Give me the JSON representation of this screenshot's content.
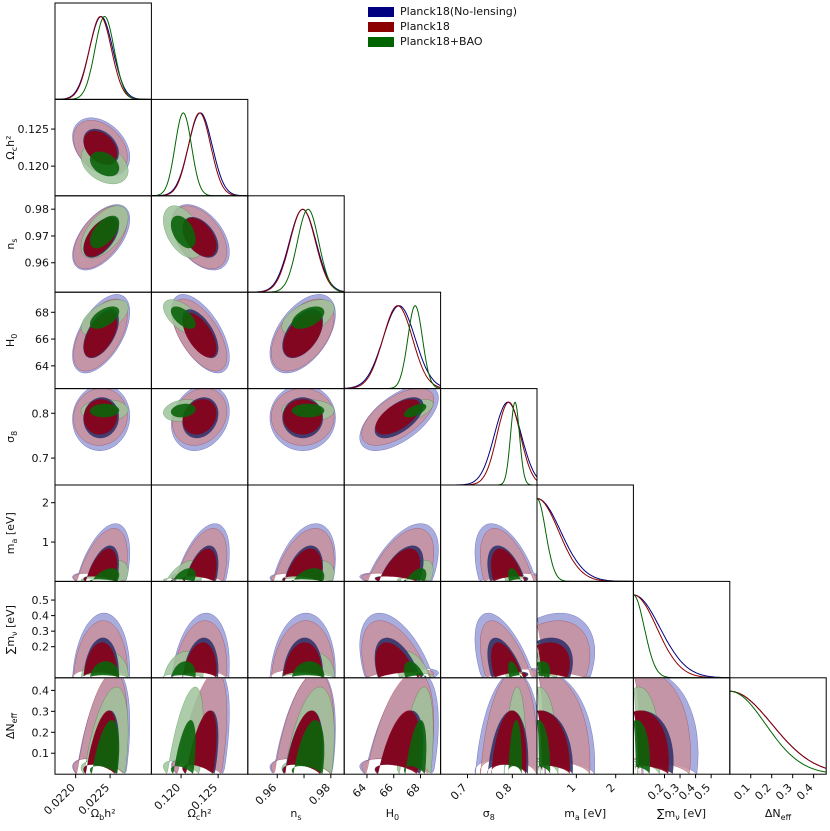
{
  "chart_data": {
    "type": "triangle-corner-plot",
    "legend": {
      "placement": "top-center",
      "entries": [
        {
          "label": "Planck18(No-lensing)",
          "color": "#000080"
        },
        {
          "label": "Planck18",
          "color": "#8b0000"
        },
        {
          "label": "Planck18+BAO",
          "color": "#006400"
        }
      ]
    },
    "parameters": [
      {
        "key": "omegabh2",
        "tex_main": "Ω",
        "tex_sub": "b",
        "tex_rest": "h²",
        "range": [
          0.0217,
          0.0231
        ],
        "ticks": [
          0.022,
          0.0225
        ],
        "tick_labels": [
          "0.0220",
          "0.0225"
        ]
      },
      {
        "key": "omegach2",
        "tex_main": "Ω",
        "tex_sub": "c",
        "tex_rest": "h²",
        "range": [
          0.116,
          0.129
        ],
        "ticks": [
          0.12,
          0.125
        ],
        "tick_labels": [
          "0.120",
          "0.125"
        ]
      },
      {
        "key": "ns",
        "tex_main": "n",
        "tex_sub": "s",
        "tex_rest": "",
        "range": [
          0.949,
          0.985
        ],
        "ticks": [
          0.96,
          0.97,
          0.98
        ],
        "tick_labels": [
          "0.96",
          "0.97",
          "0.98"
        ],
        "bottom_tick_labels": [
          "0.96",
          "",
          "0.98"
        ]
      },
      {
        "key": "H0",
        "tex_main": "H",
        "tex_sub": "0",
        "tex_rest": "",
        "range": [
          62.3,
          69.5
        ],
        "ticks": [
          64,
          66,
          68
        ],
        "tick_labels": [
          "64",
          "66",
          "68"
        ]
      },
      {
        "key": "sigma8",
        "tex_main": "σ",
        "tex_sub": "8",
        "tex_rest": "",
        "range": [
          0.64,
          0.855
        ],
        "ticks": [
          0.7,
          0.8
        ],
        "tick_labels": [
          "0.7",
          "0.8"
        ]
      },
      {
        "key": "ma",
        "tex_main": "m",
        "tex_sub": "a",
        "tex_rest": " [eV]",
        "range": [
          0.0,
          2.45
        ],
        "ticks": [
          1,
          2
        ],
        "tick_labels": [
          "1",
          "2"
        ]
      },
      {
        "key": "mnu",
        "tex_main": "∑m",
        "tex_sub": "ν",
        "tex_rest": " [eV]",
        "range": [
          0.0,
          0.62
        ],
        "ticks": [
          0.2,
          0.3,
          0.4,
          0.5
        ],
        "tick_labels": [
          "0.2",
          "0.3",
          "0.4",
          "0.5"
        ],
        "bottom_tick_labels": [
          "0.2",
          "0.3",
          "0.4",
          "0.5"
        ]
      },
      {
        "key": "dneff",
        "tex_main": "ΔN",
        "tex_sub": "eff",
        "tex_rest": "",
        "range": [
          0.0,
          0.46
        ],
        "ticks": [
          0.1,
          0.2,
          0.3,
          0.4
        ],
        "tick_labels": [
          "0.1",
          "0.2",
          "0.3",
          "0.4"
        ]
      }
    ],
    "left_tick_overrides": {
      "omegach2": [
        "0.120",
        "0.125"
      ],
      "ns": [
        "0.96",
        "0.97",
        "0.98"
      ],
      "H0": [
        "64",
        "66",
        "68"
      ],
      "sigma8": [
        "0.7",
        "0.8"
      ],
      "ma": [
        "1",
        "2"
      ],
      "mnu": [
        "0.2",
        "0.3",
        "0.4",
        "0.5"
      ],
      "dneff": [
        "0.1",
        "0.2",
        "0.3",
        "0.4"
      ]
    },
    "fills": {
      "nolensing_outer": "#9a9fd8",
      "nolensing_inner": "#33336b",
      "planck_outer": "#c9909d",
      "planck_inner": "#8b0018",
      "bao_outer": "#9fc39a",
      "bao_inner": "#0a640a"
    },
    "gaussian_params": {
      "nolensing": {
        "mean": [
          0.02237,
          0.1226,
          0.9695,
          66.4,
          0.79,
          0.0,
          0.0,
          0.0
        ],
        "sd": [
          0.00017,
          0.0016,
          0.005,
          1.2,
          0.03,
          0.6,
          0.17,
          0.2
        ],
        "limit": [
          false,
          false,
          false,
          false,
          false,
          true,
          true,
          true
        ]
      },
      "planck": {
        "mean": [
          0.02236,
          0.1225,
          0.9695,
          66.3,
          0.792,
          0.0,
          0.0,
          0.0
        ],
        "sd": [
          0.00016,
          0.0015,
          0.0048,
          1.1,
          0.026,
          0.55,
          0.15,
          0.2
        ],
        "limit": [
          false,
          false,
          false,
          false,
          false,
          true,
          true,
          true
        ]
      },
      "bao": {
        "mean": [
          0.02242,
          0.1203,
          0.9715,
          67.6,
          0.806,
          0.0,
          0.0,
          0.0
        ],
        "sd": [
          0.00014,
          0.0011,
          0.004,
          0.55,
          0.01,
          0.22,
          0.07,
          0.17
        ],
        "limit": [
          false,
          false,
          false,
          false,
          false,
          true,
          true,
          true
        ]
      }
    },
    "correlations": {
      "0-1": -0.35,
      "0-2": 0.55,
      "0-3": 0.55,
      "0-4": 0.05,
      "1-2": -0.45,
      "1-3": -0.6,
      "1-4": 0.2,
      "2-3": 0.5,
      "2-4": 0.0,
      "3-4": 0.6,
      "0-5": 0.5,
      "1-5": 0.5,
      "2-5": 0.4,
      "3-5": 0.55,
      "4-5": -0.5,
      "0-6": 0.1,
      "1-6": 0.2,
      "2-6": 0.1,
      "3-6": -0.5,
      "4-6": -0.6,
      "5-6": 0.4,
      "0-7": 0.5,
      "1-7": 0.6,
      "2-7": 0.45,
      "3-7": 0.5,
      "4-7": 0.2,
      "5-7": 0.1,
      "6-7": 0.2
    },
    "grid": false
  }
}
